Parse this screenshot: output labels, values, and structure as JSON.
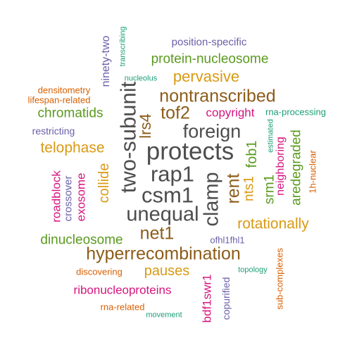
{
  "colors": {
    "gray": "#4d4d4d",
    "brown": "#8c5c1a",
    "gold": "#d99a14",
    "green": "#5a9a1e",
    "magenta": "#d6137f",
    "purple": "#6a60a9",
    "orange": "#d95f02",
    "teal": "#1b9e77"
  },
  "words": [
    {
      "text": "protects",
      "color": "#4d4d4d"
    },
    {
      "text": "rap1",
      "color": "#4d4d4d"
    },
    {
      "text": "csm1",
      "color": "#4d4d4d"
    },
    {
      "text": "unequal",
      "color": "#4d4d4d"
    },
    {
      "text": "foreign",
      "color": "#4d4d4d"
    },
    {
      "text": "two-subunit",
      "color": "#4d4d4d"
    },
    {
      "text": "clamp",
      "color": "#4d4d4d"
    },
    {
      "text": "nontranscribed",
      "color": "#8c5c1a"
    },
    {
      "text": "tof2",
      "color": "#8c5c1a"
    },
    {
      "text": "hyperrecombination",
      "color": "#8c5c1a"
    },
    {
      "text": "net1",
      "color": "#8c5c1a"
    },
    {
      "text": "rent",
      "color": "#8c5c1a"
    },
    {
      "text": "lrs4",
      "color": "#8c5c1a"
    },
    {
      "text": "pervasive",
      "color": "#d99a14"
    },
    {
      "text": "telophase",
      "color": "#d99a14"
    },
    {
      "text": "rotationally",
      "color": "#d99a14"
    },
    {
      "text": "pauses",
      "color": "#d99a14"
    },
    {
      "text": "collide",
      "color": "#d99a14"
    },
    {
      "text": "nts1",
      "color": "#d99a14"
    },
    {
      "text": "protein-nucleosome",
      "color": "#5a9a1e"
    },
    {
      "text": "chromatids",
      "color": "#5a9a1e"
    },
    {
      "text": "dinucleosome",
      "color": "#5a9a1e"
    },
    {
      "text": "fob1",
      "color": "#5a9a1e"
    },
    {
      "text": "srm1",
      "color": "#5a9a1e"
    },
    {
      "text": "aredegraded",
      "color": "#5a9a1e"
    },
    {
      "text": "copyright",
      "color": "#d6137f"
    },
    {
      "text": "roadblock",
      "color": "#d6137f"
    },
    {
      "text": "exosome",
      "color": "#d6137f"
    },
    {
      "text": "ribonucleoproteins",
      "color": "#d6137f"
    },
    {
      "text": "bdf1swr1",
      "color": "#d6137f"
    },
    {
      "text": "neighboring",
      "color": "#d6137f"
    },
    {
      "text": "position-specific",
      "color": "#6a60a9"
    },
    {
      "text": "ninety-two",
      "color": "#6a60a9"
    },
    {
      "text": "restricting",
      "color": "#6a60a9"
    },
    {
      "text": "crossover",
      "color": "#6a60a9"
    },
    {
      "text": "copurified",
      "color": "#6a60a9"
    },
    {
      "text": "ofhl1fhl1",
      "color": "#6a60a9"
    },
    {
      "text": "densitometry",
      "color": "#d95f02"
    },
    {
      "text": "lifespan-related",
      "color": "#d95f02"
    },
    {
      "text": "discovering",
      "color": "#d95f02"
    },
    {
      "text": "rna-related",
      "color": "#d95f02"
    },
    {
      "text": "sub-complexes",
      "color": "#d95f02"
    },
    {
      "text": "1h-nuclear",
      "color": "#d95f02"
    },
    {
      "text": "transcribing",
      "color": "#1b9e77"
    },
    {
      "text": "nucleolus",
      "color": "#1b9e77"
    },
    {
      "text": "rna-processing",
      "color": "#1b9e77"
    },
    {
      "text": "estimated",
      "color": "#1b9e77"
    },
    {
      "text": "topology",
      "color": "#1b9e77"
    },
    {
      "text": "movement",
      "color": "#1b9e77"
    }
  ]
}
